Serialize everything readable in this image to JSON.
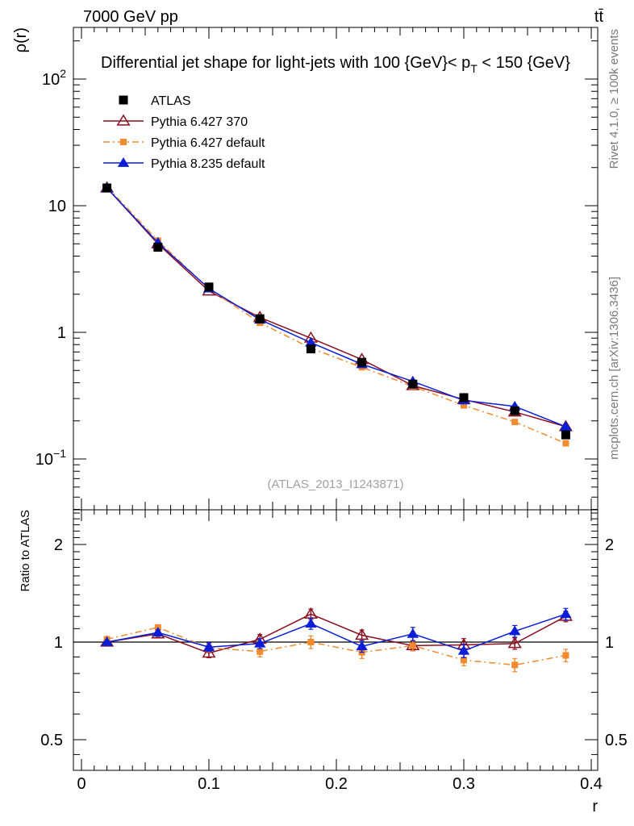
{
  "chart_data": {
    "type": "line",
    "header_left": "7000 GeV pp",
    "header_right": "tt̄",
    "title": "Differential jet shape for light-jets with 100 {GeV}< p_T < 150 {GeV}",
    "title_parts": {
      "pre": "Differential jet shape for light-jets with 100 {GeV}< p",
      "sub": "T",
      "post": " < 150 {GeV}"
    },
    "ylabel": "ρ(r)",
    "xlabel": "r",
    "ratio_ylabel": "Ratio to ATLAS",
    "analysis_label": "(ATLAS_2013_I1243871)",
    "side_label_top": "Rivet 4.1.0, ≥ 100k events",
    "side_label_bottom": "mcplots.cern.ch [arXiv:1306.3436]",
    "xlim": [
      -0.015,
      0.4125
    ],
    "ylim": [
      0.04,
      250
    ],
    "yscale": "log",
    "ratio_ylim": [
      0.43,
      2.5
    ],
    "ratio_yscale": "log",
    "x_ticks": [
      0,
      0.1,
      0.2,
      0.3,
      0.4
    ],
    "x_tick_labels": [
      "0",
      "0.1",
      "0.2",
      "0.3",
      "0.4"
    ],
    "y_tick_labels": [
      {
        "value": 100,
        "base": "10",
        "exp": "2"
      },
      {
        "value": 10,
        "base": "10",
        "exp": ""
      },
      {
        "value": 1,
        "base": "1",
        "exp": ""
      },
      {
        "value": 0.1,
        "base": "10",
        "exp": "−1"
      }
    ],
    "ratio_y_ticks": [
      0.5,
      1,
      2
    ],
    "ratio_y_tick_labels": [
      "0.5",
      "1",
      "2"
    ],
    "x": [
      0.02,
      0.06,
      0.1,
      0.14,
      0.18,
      0.22,
      0.26,
      0.3,
      0.34,
      0.38
    ],
    "series": [
      {
        "name": "ATLAS",
        "style": "data",
        "color": "#000000",
        "marker": "square",
        "values": [
          13.8,
          4.7,
          2.28,
          1.28,
          0.74,
          0.58,
          0.39,
          0.305,
          0.24,
          0.155
        ],
        "ratio": [
          1,
          1,
          1,
          1,
          1,
          1,
          1,
          1,
          1,
          1
        ],
        "ratio_err": [
          0.02,
          0.02,
          0.02,
          0.02,
          0.02,
          0.02,
          0.02,
          0.02,
          0.02,
          0.02
        ]
      },
      {
        "name": "Pythia 6.427 370",
        "style": "solid",
        "color": "#8b0f1f",
        "marker": "open-triangle",
        "values": [
          13.8,
          5.0,
          2.12,
          1.31,
          0.9,
          0.61,
          0.38,
          0.295,
          0.235,
          0.18
        ],
        "ratio": [
          1.0,
          1.06,
          0.925,
          1.02,
          1.22,
          1.05,
          0.975,
          0.98,
          0.99,
          1.2
        ],
        "ratio_err": [
          0.01,
          0.02,
          0.03,
          0.035,
          0.045,
          0.04,
          0.035,
          0.045,
          0.04,
          0.045
        ]
      },
      {
        "name": "Pythia 6.427 default",
        "style": "dashdot",
        "color": "#f28a30",
        "marker": "square",
        "values": [
          14.1,
          5.3,
          2.2,
          1.19,
          0.75,
          0.53,
          0.375,
          0.265,
          0.196,
          0.133
        ],
        "ratio": [
          1.02,
          1.11,
          0.96,
          0.935,
          1.0,
          0.93,
          0.975,
          0.88,
          0.85,
          0.91
        ],
        "ratio_err": [
          0.01,
          0.02,
          0.03,
          0.035,
          0.045,
          0.04,
          0.035,
          0.035,
          0.04,
          0.04
        ]
      },
      {
        "name": "Pythia 8.235 default",
        "style": "solid",
        "color": "#0a1ed8",
        "marker": "triangle",
        "values": [
          13.8,
          5.1,
          2.22,
          1.26,
          0.83,
          0.56,
          0.41,
          0.29,
          0.26,
          0.18
        ],
        "ratio": [
          1.0,
          1.07,
          0.965,
          0.99,
          1.14,
          0.97,
          1.06,
          0.94,
          1.08,
          1.22
        ],
        "ratio_err": [
          0.01,
          0.02,
          0.03,
          0.035,
          0.045,
          0.04,
          0.05,
          0.045,
          0.045,
          0.05
        ]
      }
    ],
    "main_err": [
      0.02,
      0.02,
      0.025,
      0.03,
      0.04,
      0.04,
      0.04,
      0.04,
      0.05,
      0.05
    ],
    "legend_position": "top-left",
    "grid": false
  }
}
